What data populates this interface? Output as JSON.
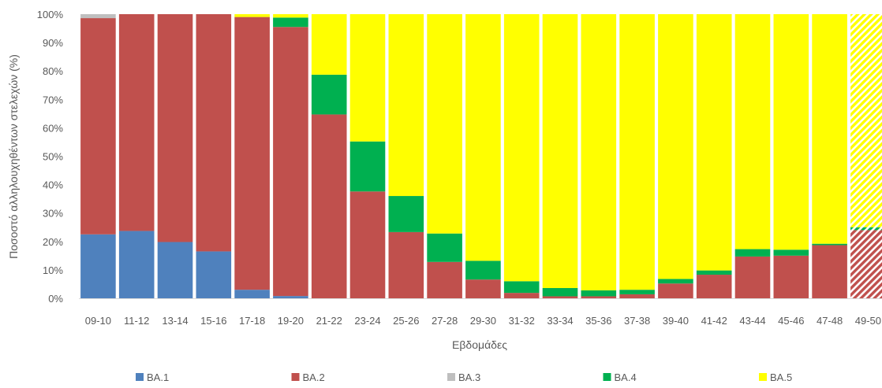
{
  "chart_data": {
    "type": "bar",
    "stacked": true,
    "percent": true,
    "xlabel": "Εβδομάδες",
    "ylabel": "Ποσοστό αλληλουχηθέντων στελεχών (%)",
    "ylim": [
      0,
      100
    ],
    "yticks": [
      "0%",
      "10%",
      "20%",
      "30%",
      "40%",
      "50%",
      "60%",
      "70%",
      "80%",
      "90%",
      "100%"
    ],
    "grid": false,
    "legend_position": "bottom",
    "categories": [
      "09-10",
      "11-12",
      "13-14",
      "15-16",
      "17-18",
      "19-20",
      "21-22",
      "23-24",
      "25-26",
      "27-28",
      "29-30",
      "31-32",
      "33-34",
      "35-36",
      "37-38",
      "39-40",
      "41-42",
      "43-44",
      "45-46",
      "47-48",
      "49-50"
    ],
    "hatched_categories": [
      "49-50"
    ],
    "series": [
      {
        "name": "BA.1",
        "color": "#4f81bd",
        "values": [
          22.5,
          23.7,
          19.8,
          16.5,
          3.0,
          0.8,
          0,
          0,
          0,
          0,
          0,
          0,
          0,
          0,
          0,
          0,
          0,
          0,
          0,
          0,
          0
        ]
      },
      {
        "name": "BA.2",
        "color": "#c0504d",
        "values": [
          76.1,
          76.3,
          80.2,
          83.5,
          96.0,
          94.7,
          64.7,
          37.6,
          23.3,
          12.8,
          6.6,
          1.9,
          0.7,
          0.7,
          1.4,
          5.2,
          8.3,
          14.7,
          15.0,
          18.7,
          24.0
        ]
      },
      {
        "name": "BA.3",
        "color": "#bfbfbf",
        "values": [
          1.4,
          0,
          0,
          0,
          0,
          0,
          0,
          0,
          0,
          0,
          0,
          0,
          0,
          0,
          0,
          0,
          0,
          0,
          0,
          0,
          0
        ]
      },
      {
        "name": "BA.4",
        "color": "#00b050",
        "values": [
          0,
          0,
          0,
          0,
          0,
          3.3,
          14.0,
          17.6,
          12.7,
          10.0,
          6.6,
          4.1,
          2.9,
          2.1,
          1.6,
          1.6,
          1.5,
          2.6,
          2.1,
          0.5,
          1.0
        ]
      },
      {
        "name": "BA.5",
        "color": "#ffff00",
        "values": [
          0,
          0,
          0,
          0,
          1.0,
          1.2,
          21.3,
          44.8,
          64.0,
          77.2,
          86.8,
          94.0,
          96.4,
          97.2,
          97.0,
          93.2,
          90.2,
          82.7,
          82.9,
          80.8,
          75.0
        ]
      }
    ]
  }
}
